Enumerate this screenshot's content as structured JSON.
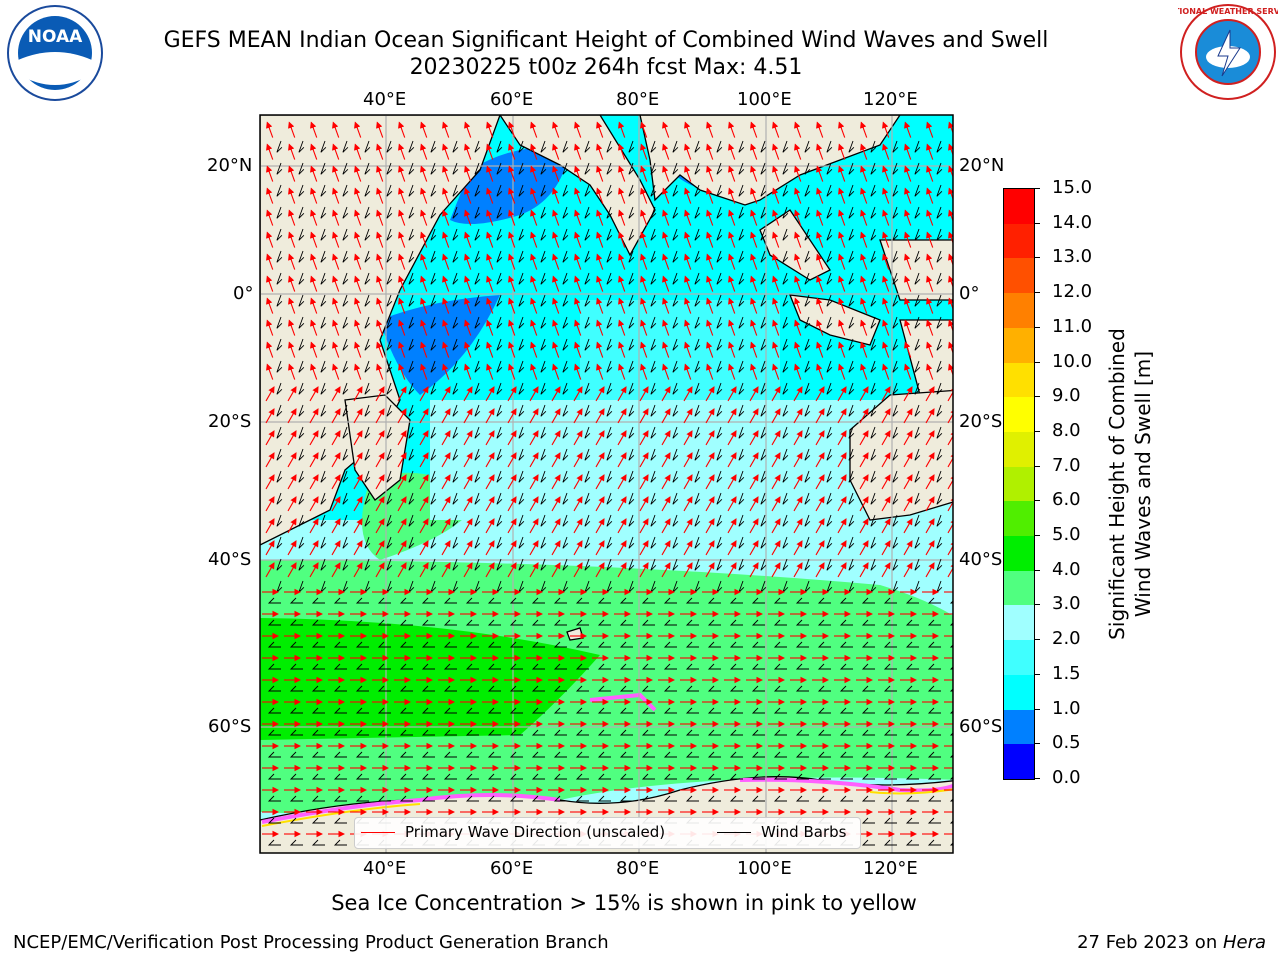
{
  "header": {
    "title_line1": "GEFS MEAN Indian Ocean Significant Height of Combined Wind Waves and Swell",
    "title_line2": "20230225 t00z 264h fcst   Max: 4.51"
  },
  "logos": {
    "left": "noaa-logo",
    "left_text": "NOAA",
    "right": "national-weather-service-logo",
    "right_text": "NATIONAL WEATHER SERVICE"
  },
  "map": {
    "lon_labels": [
      "40°E",
      "60°E",
      "80°E",
      "100°E",
      "120°E"
    ],
    "lat_labels": [
      "20°N",
      "0°",
      "20°S",
      "40°S",
      "60°S"
    ],
    "lon_range": [
      20,
      130
    ],
    "lat_range": [
      -73,
      28
    ],
    "lon_ticks": [
      40,
      60,
      80,
      100,
      120
    ],
    "lat_ticks": [
      20,
      0,
      -20,
      -40,
      -60
    ],
    "grid": true
  },
  "legend": {
    "wave_label": "Primary Wave Direction (unscaled)",
    "wind_label": "Wind Barbs",
    "wave_color": "#ff0000",
    "wind_color": "#000000"
  },
  "colorbar": {
    "label_line1": "Significant Height of Combined",
    "label_line2": "Wind Waves and Swell [m]",
    "ticks": [
      "0.0",
      "0.5",
      "1.0",
      "1.5",
      "2.0",
      "3.0",
      "4.0",
      "5.0",
      "6.0",
      "7.0",
      "8.0",
      "9.0",
      "10.0",
      "11.0",
      "12.0",
      "13.0",
      "14.0",
      "15.0"
    ],
    "colors": [
      "#0000ff",
      "#0080ff",
      "#00ffff",
      "#40ffff",
      "#a0ffff",
      "#50ff80",
      "#00ee00",
      "#50ee00",
      "#b0f000",
      "#e0f000",
      "#ffff00",
      "#ffe000",
      "#ffb000",
      "#ff8000",
      "#ff5000",
      "#ff2000",
      "#ff0000"
    ]
  },
  "notes": {
    "sea_ice": "Sea Ice Concentration > 15% is shown in pink to yellow"
  },
  "footer": {
    "left": "NCEP/EMC/Verification Post Processing Product Generation Branch",
    "right_date": "27 Feb 2023 on ",
    "right_host": "Hera"
  }
}
